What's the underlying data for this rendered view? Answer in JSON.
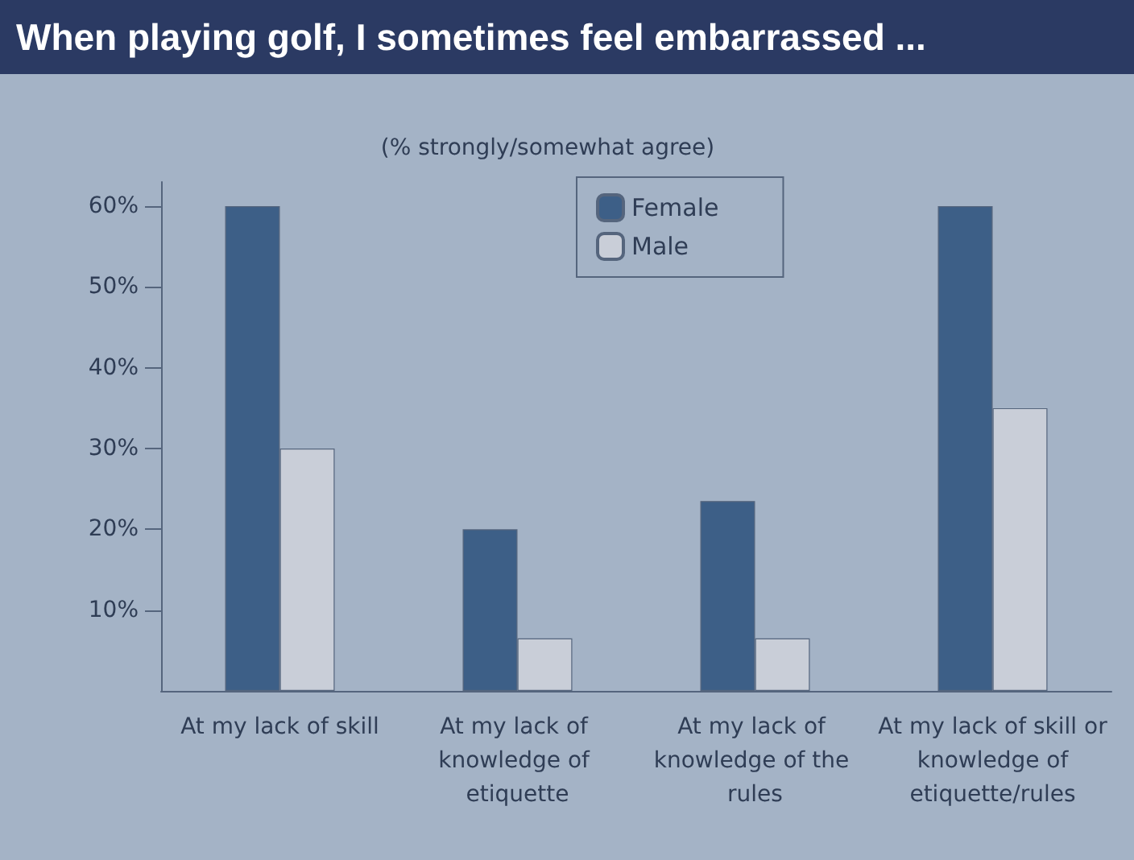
{
  "chart_data": {
    "type": "bar",
    "title": "When playing golf, I sometimes feel embarrassed ...",
    "subtitle": "(% strongly/somewhat agree)",
    "categories": [
      "At my lack of skill",
      "At my lack of knowledge of etiquette",
      "At my lack of knowledge of the rules",
      "At my lack of skill or knowledge of etiquette/rules"
    ],
    "series": [
      {
        "name": "Female",
        "color": "#3d5f87",
        "values": [
          60,
          20,
          23.5,
          60
        ]
      },
      {
        "name": "Male",
        "color": "#c9ced8",
        "values": [
          30,
          6.5,
          6.5,
          35
        ]
      }
    ],
    "ylim": [
      0,
      63
    ],
    "yticks": [
      {
        "value": 10,
        "label": "10%"
      },
      {
        "value": 20,
        "label": "20%"
      },
      {
        "value": 30,
        "label": "30%"
      },
      {
        "value": 40,
        "label": "40%"
      },
      {
        "value": 50,
        "label": "50%"
      },
      {
        "value": 60,
        "label": "60%"
      }
    ],
    "grid": false,
    "legend": "top"
  }
}
